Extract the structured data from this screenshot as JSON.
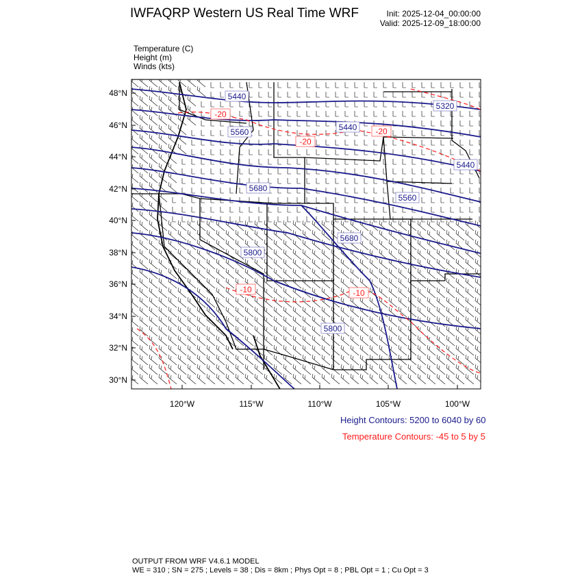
{
  "header": {
    "title": "IWFAQRP Western US Real Time WRF",
    "init": "Init: 2025-12-04_00:00:00",
    "valid": "Valid: 2025-12-09_18:00:00"
  },
  "fields": [
    {
      "name": "Temperature",
      "unit": "(C)",
      "label": "Temperature   (C)"
    },
    {
      "name": "Height",
      "unit": "(m)",
      "label": "Height   (m)"
    },
    {
      "name": "Winds",
      "unit": "(kts)",
      "label": "Winds   (kts)"
    }
  ],
  "axes": {
    "lat_ticks": [
      "48°N",
      "46°N",
      "44°N",
      "42°N",
      "40°N",
      "38°N",
      "36°N",
      "34°N",
      "32°N",
      "30°N"
    ],
    "lon_ticks": [
      "120°W",
      "115°W",
      "110°W",
      "105°W",
      "100°W"
    ]
  },
  "contour_info": {
    "height": "Height Contours: 5200 to 6040 by 60",
    "temperature": "Temperature Contours: -45 to 5 by 5"
  },
  "colors": {
    "height": "#1a1a8c",
    "temperature": "#ff1a1a",
    "boundaries": "#000000",
    "barbs": "#000000"
  },
  "height_labels": [
    "5440",
    "5560",
    "5680",
    "5440",
    "5320",
    "5440",
    "5560",
    "5680",
    "5800",
    "5800"
  ],
  "temperature_labels": [
    "-20",
    "-20",
    "-20",
    "-10",
    "-10"
  ],
  "footer": {
    "line1": "OUTPUT FROM WRF V4.6.1 MODEL",
    "line2": "WE = 310 ; SN = 275 ; Levels = 38 ; Dis = 8km ; Phys Opt = 8 ; PBL Opt = 1 ; Cu Opt = 3"
  }
}
